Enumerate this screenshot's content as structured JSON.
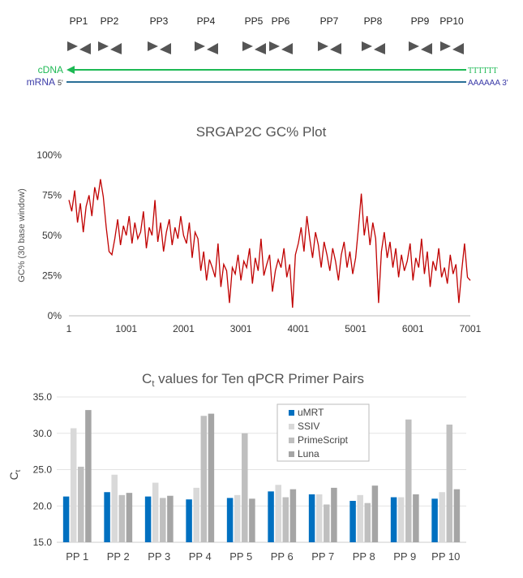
{
  "diagram": {
    "primer_pairs": [
      "PP1",
      "PP2",
      "PP3",
      "PP4",
      "PP5",
      "PP6",
      "PP7",
      "PP8",
      "PP9",
      "PP10"
    ],
    "cdna_label": "cDNA",
    "cdna_tail": "TTTTTT",
    "mrna_label": "mRNA",
    "mrna_5": "5'",
    "mrna_tail": "AAAAAA 3'",
    "colors": {
      "cdna": "#1db954",
      "mrna_line": "#2a6f97",
      "mrna_text": "#3b3ba8",
      "arrow": "#555555"
    }
  },
  "chart_data": [
    {
      "type": "line",
      "title": "SRGAP2C GC% Plot",
      "xlabel": "",
      "ylabel": "GC% (30 base window)",
      "xlim": [
        1,
        7001
      ],
      "ylim": [
        0,
        100
      ],
      "xticks": [
        "1",
        "1001",
        "2001",
        "3001",
        "4001",
        "5001",
        "6001",
        "7001"
      ],
      "yticks": [
        "0%",
        "25%",
        "50%",
        "75%",
        "100%"
      ],
      "color": "#c00000",
      "x_step": 50,
      "y": [
        72,
        65,
        78,
        58,
        70,
        52,
        68,
        75,
        62,
        80,
        72,
        85,
        74,
        55,
        40,
        38,
        48,
        60,
        44,
        56,
        50,
        62,
        45,
        58,
        48,
        52,
        65,
        42,
        55,
        50,
        72,
        46,
        58,
        40,
        52,
        60,
        44,
        55,
        48,
        62,
        50,
        45,
        58,
        36,
        52,
        48,
        28,
        40,
        22,
        35,
        30,
        24,
        45,
        18,
        32,
        28,
        8,
        30,
        26,
        38,
        22,
        34,
        30,
        42,
        20,
        36,
        28,
        48,
        25,
        32,
        38,
        15,
        28,
        35,
        30,
        42,
        24,
        32,
        5,
        38,
        45,
        55,
        40,
        62,
        48,
        36,
        52,
        44,
        30,
        46,
        38,
        28,
        42,
        34,
        22,
        38,
        46,
        30,
        40,
        26,
        36,
        55,
        76,
        50,
        62,
        44,
        58,
        48,
        8,
        40,
        52,
        36,
        46,
        30,
        42,
        24,
        38,
        28,
        34,
        45,
        22,
        36,
        30,
        48,
        26,
        40,
        18,
        34,
        28,
        42,
        24,
        30,
        20,
        38,
        26,
        32,
        8,
        28,
        45,
        24,
        22
      ],
      "grid": false
    },
    {
      "type": "bar",
      "title": "Ct values for Ten qPCR Primer Pairs",
      "title_main": "C",
      "title_sub": "t",
      "title_rest": " values for Ten qPCR Primer Pairs",
      "ylabel_main": "C",
      "ylabel_sub": "t",
      "categories": [
        "PP 1",
        "PP 2",
        "PP 3",
        "PP 4",
        "PP 5",
        "PP 6",
        "PP 7",
        "PP 8",
        "PP 9",
        "PP 10"
      ],
      "ylim": [
        15,
        35
      ],
      "yticks": [
        "15.0",
        "20.0",
        "25.0",
        "30.0",
        "35.0"
      ],
      "grid": true,
      "legend_position": "top-center",
      "series": [
        {
          "name": "uMRT",
          "color": "#0070c0",
          "values": [
            21.3,
            21.9,
            21.3,
            20.9,
            21.1,
            22.0,
            21.6,
            20.7,
            21.2,
            21.0
          ]
        },
        {
          "name": "SSIV",
          "color": "#d9d9d9",
          "values": [
            30.7,
            24.3,
            23.2,
            22.5,
            21.5,
            22.9,
            21.6,
            21.5,
            21.2,
            21.9
          ]
        },
        {
          "name": "PrimeScript",
          "color": "#bfbfbf",
          "values": [
            25.4,
            21.5,
            21.1,
            32.4,
            30.0,
            21.2,
            20.2,
            20.4,
            31.9,
            31.2
          ]
        },
        {
          "name": "Luna",
          "color": "#a5a5a5",
          "values": [
            33.2,
            21.8,
            21.4,
            32.7,
            21.0,
            22.3,
            22.5,
            22.8,
            21.6,
            22.3
          ]
        }
      ]
    }
  ]
}
